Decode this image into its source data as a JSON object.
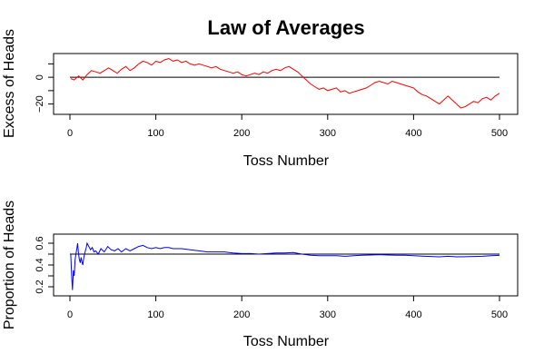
{
  "chart_data": {
    "title": "Law of Averages",
    "panels": [
      {
        "type": "line",
        "xlabel": "Toss Number",
        "ylabel": "Excess of Heads",
        "xlim": [
          0,
          500
        ],
        "ylim": [
          -25,
          15
        ],
        "xticks": [
          0,
          100,
          200,
          300,
          400,
          500
        ],
        "yticks": [
          -20,
          -10,
          0,
          10
        ],
        "yticklabels": [
          "−20",
          "",
          "0",
          ""
        ],
        "reference_y": 0,
        "color": "#ff0000",
        "series": [
          {
            "x": [
              1,
              5,
              10,
              15,
              20,
              25,
              30,
              35,
              40,
              45,
              50,
              55,
              60,
              65,
              70,
              75,
              80,
              85,
              90,
              95,
              100,
              105,
              110,
              115,
              120,
              125,
              130,
              135,
              140,
              145,
              150,
              155,
              160,
              165,
              170,
              175,
              180,
              185,
              190,
              195,
              200,
              205,
              210,
              215,
              220,
              225,
              230,
              235,
              240,
              245,
              250,
              255,
              260,
              265,
              270,
              275,
              280,
              285,
              290,
              295,
              300,
              305,
              310,
              315,
              320,
              325,
              330,
              335,
              340,
              345,
              350,
              355,
              360,
              365,
              370,
              375,
              380,
              385,
              390,
              395,
              400,
              405,
              410,
              415,
              420,
              425,
              430,
              435,
              440,
              445,
              450,
              455,
              460,
              465,
              470,
              475,
              480,
              485,
              490,
              495,
              500
            ],
            "y": [
              -1,
              -2,
              1,
              -2,
              2,
              5,
              4,
              3,
              5,
              7,
              5,
              3,
              6,
              8,
              5,
              7,
              10,
              12,
              11,
              9,
              12,
              11,
              13,
              14,
              12,
              13,
              11,
              12,
              10,
              9,
              10,
              9,
              8,
              7,
              8,
              6,
              5,
              4,
              3,
              4,
              2,
              1,
              2,
              3,
              2,
              4,
              3,
              5,
              6,
              5,
              7,
              8,
              6,
              4,
              1,
              -2,
              -5,
              -7,
              -9,
              -8,
              -10,
              -9,
              -8,
              -11,
              -10,
              -12,
              -11,
              -10,
              -9,
              -8,
              -6,
              -4,
              -3,
              -4,
              -5,
              -3,
              -4,
              -5,
              -6,
              -7,
              -8,
              -11,
              -13,
              -14,
              -16,
              -18,
              -20,
              -17,
              -14,
              -17,
              -20,
              -23,
              -22,
              -20,
              -18,
              -19,
              -16,
              -15,
              -17,
              -14,
              -12
            ]
          }
        ]
      },
      {
        "type": "line",
        "xlabel": "Toss Number",
        "ylabel": "Proportion of Heads",
        "xlim": [
          0,
          500
        ],
        "ylim": [
          0.15,
          0.65
        ],
        "xticks": [
          0,
          100,
          200,
          300,
          400,
          500
        ],
        "yticks": [
          0.2,
          0.3,
          0.4,
          0.5,
          0.6
        ],
        "yticklabels": [
          "0.2",
          "",
          "0.4",
          "",
          "0.6"
        ],
        "reference_y": 0.5,
        "color": "#0000ff",
        "series": [
          {
            "x": [
              1,
              2,
              3,
              4,
              5,
              6,
              7,
              8,
              9,
              10,
              11,
              12,
              13,
              14,
              15,
              16,
              17,
              18,
              19,
              20,
              22,
              24,
              26,
              28,
              30,
              33,
              36,
              40,
              44,
              48,
              52,
              56,
              60,
              65,
              70,
              75,
              80,
              85,
              90,
              95,
              100,
              105,
              110,
              115,
              120,
              130,
              140,
              150,
              160,
              170,
              180,
              190,
              200,
              210,
              220,
              230,
              240,
              250,
              260,
              270,
              280,
              290,
              300,
              310,
              320,
              330,
              340,
              350,
              360,
              370,
              380,
              390,
              400,
              410,
              420,
              430,
              440,
              450,
              460,
              470,
              480,
              490,
              500
            ],
            "y": [
              0.5,
              0.3,
              0.17,
              0.35,
              0.3,
              0.45,
              0.5,
              0.55,
              0.6,
              0.5,
              0.45,
              0.42,
              0.47,
              0.43,
              0.4,
              0.46,
              0.5,
              0.53,
              0.56,
              0.6,
              0.57,
              0.54,
              0.56,
              0.52,
              0.53,
              0.5,
              0.55,
              0.52,
              0.57,
              0.54,
              0.53,
              0.55,
              0.52,
              0.55,
              0.53,
              0.55,
              0.57,
              0.58,
              0.56,
              0.55,
              0.56,
              0.55,
              0.56,
              0.56,
              0.55,
              0.55,
              0.54,
              0.53,
              0.52,
              0.52,
              0.52,
              0.51,
              0.505,
              0.505,
              0.5,
              0.505,
              0.51,
              0.51,
              0.515,
              0.5,
              0.49,
              0.485,
              0.485,
              0.485,
              0.48,
              0.485,
              0.49,
              0.492,
              0.495,
              0.492,
              0.49,
              0.49,
              0.485,
              0.482,
              0.478,
              0.475,
              0.48,
              0.475,
              0.476,
              0.478,
              0.48,
              0.485,
              0.488
            ]
          }
        ]
      }
    ]
  }
}
